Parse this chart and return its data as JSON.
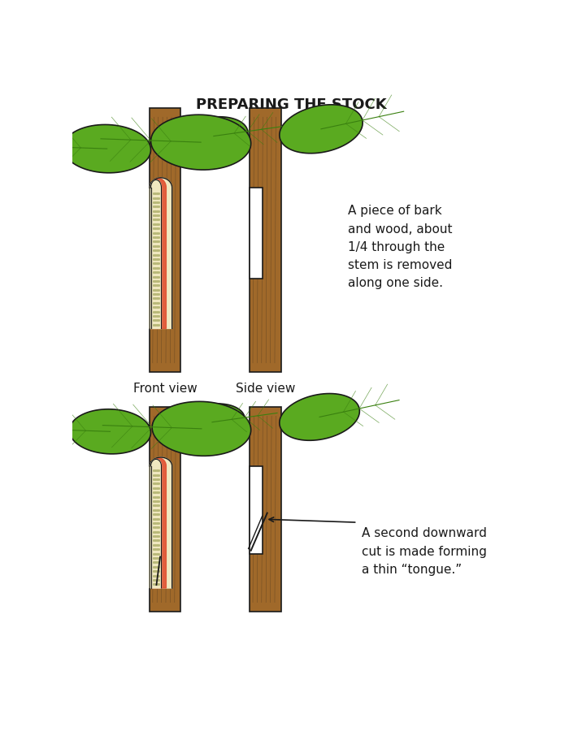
{
  "title": "PREPARING THE STOCK",
  "title_fontsize": 13,
  "front_view_label": "Front view",
  "side_view_label": "Side view",
  "annotation1": "A piece of bark\nand wood, about\n1/4 through the\nstem is removed\nalong one side.",
  "annotation2": "A second downward\ncut is made forming\na thin “tongue.”",
  "bg_color": "#ffffff",
  "bark_color": "#a0692a",
  "bark_dark": "#7a4f1a",
  "bark_light": "#c49040",
  "wood_color": "#f0e8c0",
  "wood_dots": "#b8b878",
  "cambium_color": "#e05030",
  "leaf_color": "#5aaa20",
  "leaf_dark": "#3a8010",
  "outline_color": "#1a1a1a",
  "text_color": "#1a1a1a"
}
